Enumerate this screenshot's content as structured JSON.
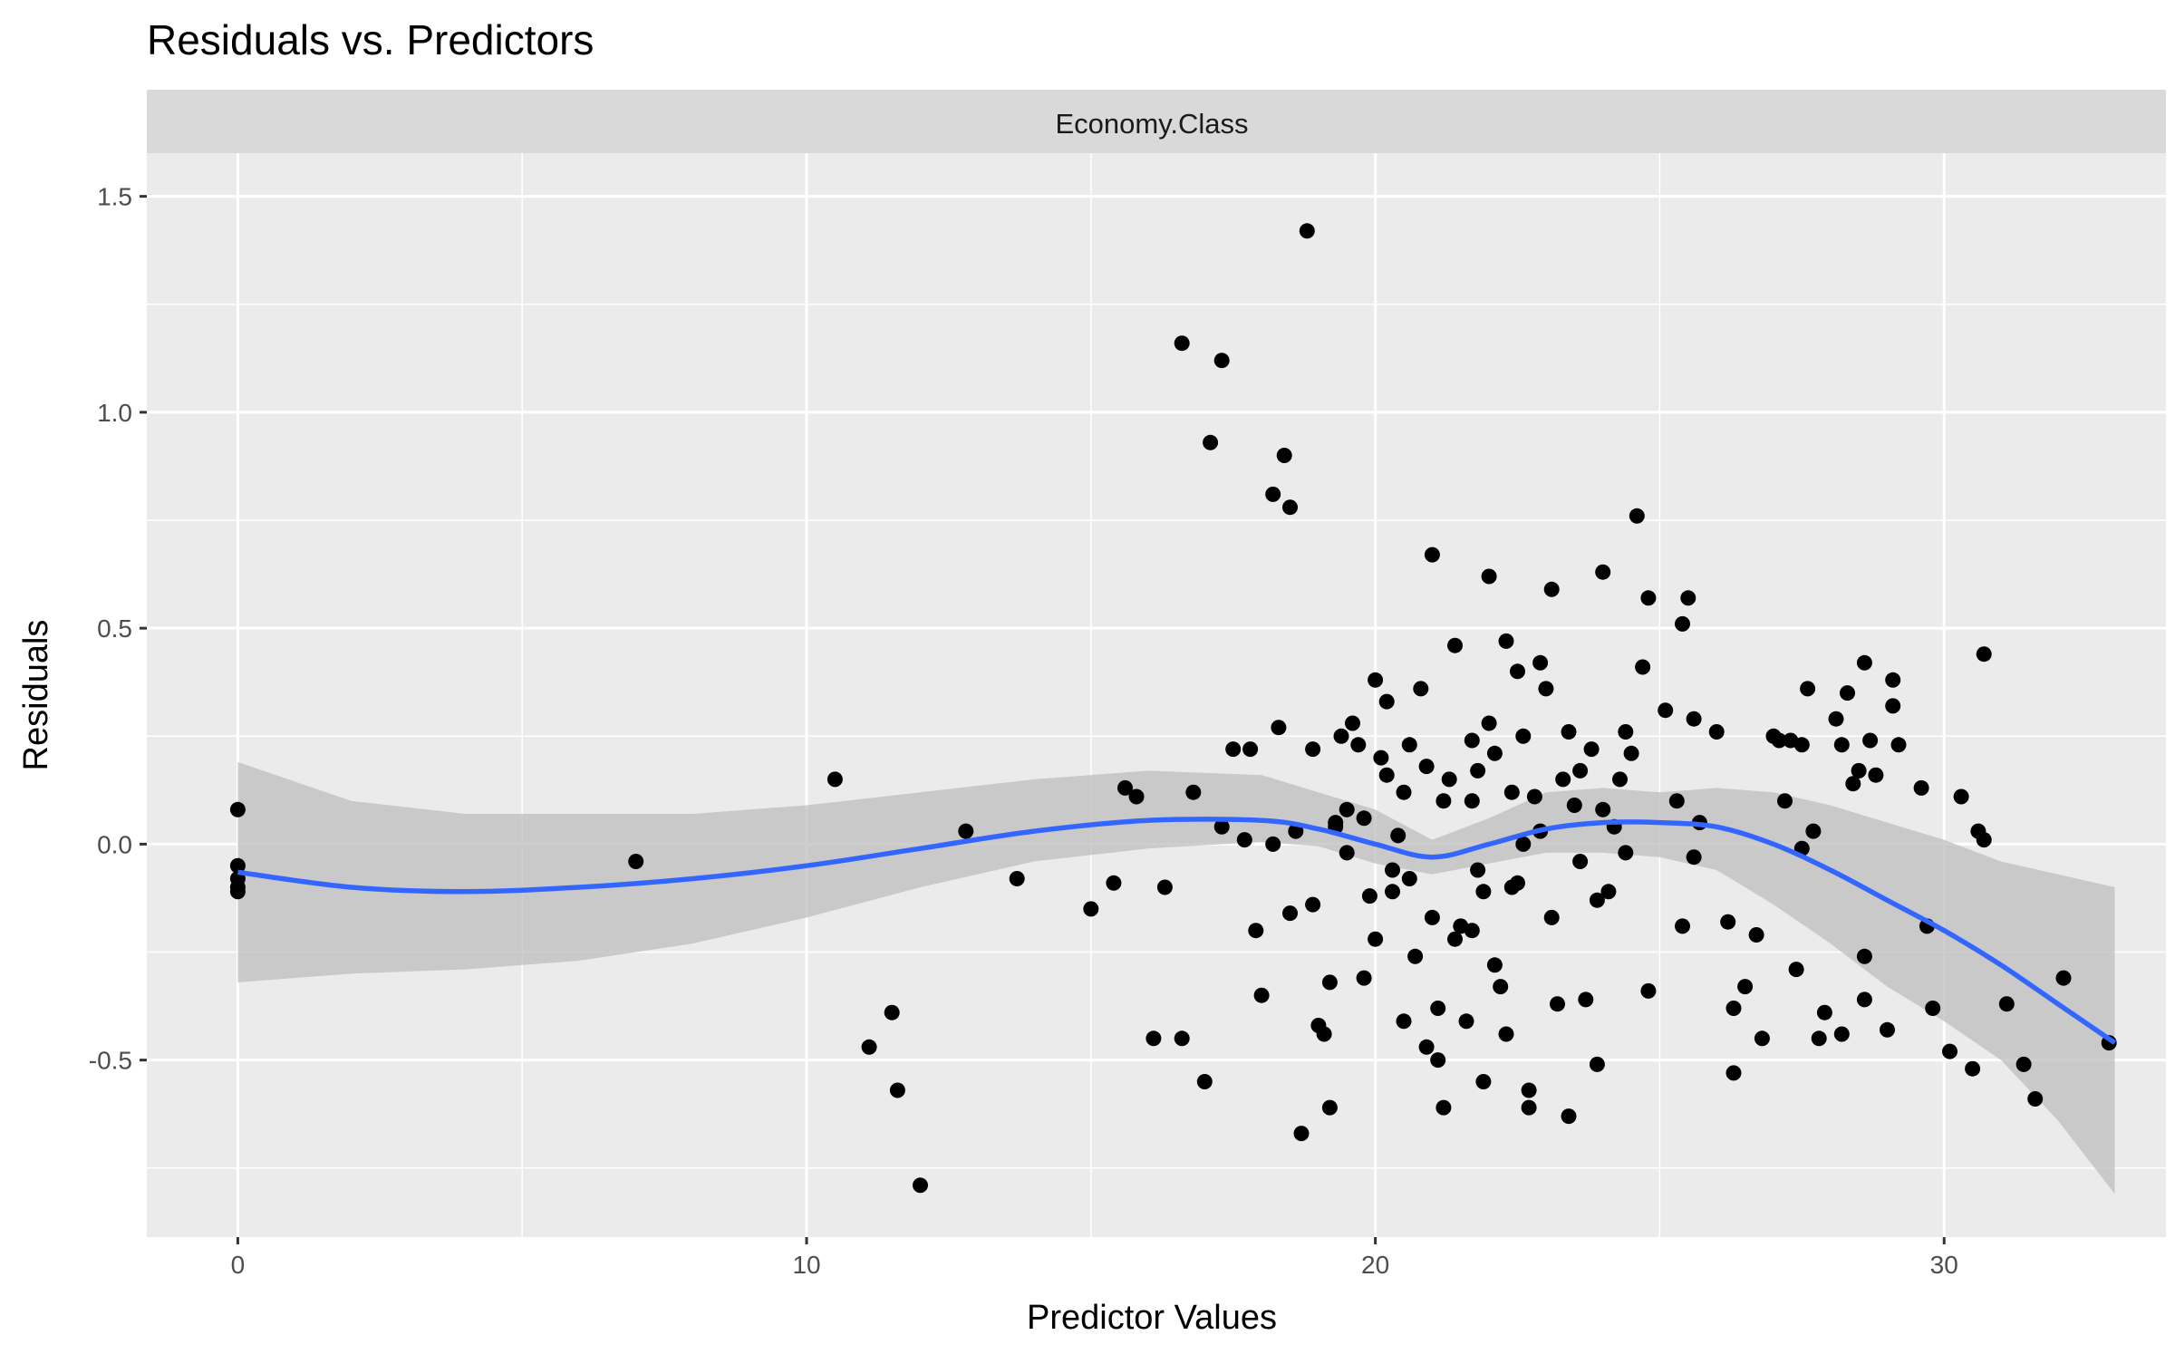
{
  "chart_data": {
    "type": "scatter",
    "title": "Residuals vs. Predictors",
    "facet_label": "Economy.Class",
    "xlabel": "Predictor Values",
    "ylabel": "Residuals",
    "xlim": [
      -1.6,
      33.9
    ],
    "ylim": [
      -0.91,
      1.6
    ],
    "x_ticks": [
      0,
      10,
      20,
      30
    ],
    "x_tick_labels": [
      "0",
      "10",
      "20",
      "30"
    ],
    "y_ticks": [
      -0.5,
      0.0,
      0.5,
      1.0,
      1.5
    ],
    "y_tick_labels": [
      "-0.5",
      "0.0",
      "0.5",
      "1.0",
      "1.5"
    ],
    "grid": true,
    "colors": {
      "points": "#000000",
      "smooth_line": "#3366FF",
      "confidence_band": "#BEBEBE",
      "panel_bg": "#EBEBEB",
      "strip_bg": "#D9D9D9",
      "grid": "#FFFFFF"
    },
    "series": [
      {
        "type": "scatter",
        "points": [
          [
            0.0,
            0.08
          ],
          [
            0.0,
            -0.05
          ],
          [
            0.0,
            -0.08
          ],
          [
            0.0,
            -0.1
          ],
          [
            0.0,
            -0.11
          ],
          [
            7.0,
            -0.04
          ],
          [
            10.5,
            0.15
          ],
          [
            11.1,
            -0.47
          ],
          [
            11.5,
            -0.39
          ],
          [
            11.6,
            -0.57
          ],
          [
            12.0,
            -0.79
          ],
          [
            12.8,
            0.03
          ],
          [
            13.7,
            -0.08
          ],
          [
            15.0,
            -0.15
          ],
          [
            15.4,
            -0.09
          ],
          [
            15.6,
            0.13
          ],
          [
            15.8,
            0.11
          ],
          [
            16.1,
            -0.45
          ],
          [
            16.3,
            -0.1
          ],
          [
            16.6,
            1.16
          ],
          [
            16.6,
            -0.45
          ],
          [
            16.8,
            0.12
          ],
          [
            17.1,
            0.93
          ],
          [
            17.0,
            -0.55
          ],
          [
            17.3,
            1.12
          ],
          [
            17.3,
            0.04
          ],
          [
            17.5,
            0.22
          ],
          [
            17.7,
            0.01
          ],
          [
            17.8,
            0.22
          ],
          [
            17.9,
            -0.2
          ],
          [
            18.0,
            -0.35
          ],
          [
            18.2,
            0.81
          ],
          [
            18.2,
            0.0
          ],
          [
            18.3,
            0.27
          ],
          [
            18.4,
            0.9
          ],
          [
            18.5,
            0.78
          ],
          [
            18.5,
            -0.16
          ],
          [
            18.6,
            0.03
          ],
          [
            18.7,
            -0.67
          ],
          [
            18.8,
            1.42
          ],
          [
            18.9,
            0.22
          ],
          [
            18.9,
            -0.14
          ],
          [
            19.0,
            -0.42
          ],
          [
            19.1,
            -0.44
          ],
          [
            19.2,
            -0.32
          ],
          [
            19.2,
            -0.61
          ],
          [
            19.3,
            0.05
          ],
          [
            19.4,
            0.25
          ],
          [
            19.5,
            0.08
          ],
          [
            19.5,
            -0.02
          ],
          [
            19.6,
            0.28
          ],
          [
            19.7,
            0.23
          ],
          [
            19.8,
            -0.31
          ],
          [
            19.8,
            0.06
          ],
          [
            19.9,
            -0.12
          ],
          [
            20.0,
            0.38
          ],
          [
            20.0,
            -0.22
          ],
          [
            20.1,
            0.2
          ],
          [
            20.2,
            0.33
          ],
          [
            20.2,
            0.16
          ],
          [
            20.3,
            -0.06
          ],
          [
            20.3,
            -0.11
          ],
          [
            20.4,
            0.02
          ],
          [
            20.5,
            0.12
          ],
          [
            20.6,
            0.23
          ],
          [
            20.6,
            -0.08
          ],
          [
            20.7,
            -0.26
          ],
          [
            20.8,
            0.36
          ],
          [
            20.9,
            0.18
          ],
          [
            21.0,
            0.67
          ],
          [
            21.0,
            -0.17
          ],
          [
            21.1,
            -0.38
          ],
          [
            21.1,
            -0.5
          ],
          [
            21.2,
            -0.61
          ],
          [
            21.3,
            0.15
          ],
          [
            21.4,
            0.46
          ],
          [
            21.4,
            -0.22
          ],
          [
            21.5,
            -0.19
          ],
          [
            21.6,
            -0.41
          ],
          [
            21.7,
            0.24
          ],
          [
            21.7,
            0.1
          ],
          [
            21.8,
            0.17
          ],
          [
            21.8,
            -0.06
          ],
          [
            21.9,
            -0.55
          ],
          [
            22.0,
            0.62
          ],
          [
            22.0,
            0.28
          ],
          [
            22.1,
            0.21
          ],
          [
            22.1,
            -0.28
          ],
          [
            22.2,
            -0.33
          ],
          [
            22.3,
            0.47
          ],
          [
            22.3,
            -0.44
          ],
          [
            22.4,
            0.12
          ],
          [
            22.5,
            0.4
          ],
          [
            22.5,
            -0.09
          ],
          [
            22.6,
            0.25
          ],
          [
            22.7,
            -0.57
          ],
          [
            22.7,
            -0.61
          ],
          [
            22.8,
            0.11
          ],
          [
            22.9,
            0.42
          ],
          [
            22.9,
            0.03
          ],
          [
            23.0,
            0.36
          ],
          [
            23.1,
            0.59
          ],
          [
            23.1,
            -0.17
          ],
          [
            23.2,
            -0.37
          ],
          [
            23.3,
            0.15
          ],
          [
            23.4,
            0.26
          ],
          [
            23.4,
            -0.63
          ],
          [
            23.5,
            0.09
          ],
          [
            23.6,
            0.17
          ],
          [
            23.7,
            -0.36
          ],
          [
            23.8,
            0.22
          ],
          [
            23.9,
            -0.51
          ],
          [
            24.0,
            0.63
          ],
          [
            24.0,
            0.08
          ],
          [
            24.1,
            -0.11
          ],
          [
            24.2,
            0.04
          ],
          [
            24.3,
            0.15
          ],
          [
            24.4,
            0.26
          ],
          [
            24.5,
            0.21
          ],
          [
            24.6,
            0.76
          ],
          [
            24.7,
            0.41
          ],
          [
            24.8,
            0.57
          ],
          [
            24.8,
            -0.34
          ],
          [
            25.1,
            0.31
          ],
          [
            25.4,
            0.51
          ],
          [
            25.4,
            -0.19
          ],
          [
            25.5,
            0.57
          ],
          [
            25.6,
            0.29
          ],
          [
            25.6,
            -0.03
          ],
          [
            25.7,
            0.05
          ],
          [
            26.0,
            0.26
          ],
          [
            26.2,
            -0.18
          ],
          [
            26.3,
            -0.38
          ],
          [
            26.3,
            -0.53
          ],
          [
            26.7,
            -0.21
          ],
          [
            26.8,
            -0.45
          ],
          [
            27.0,
            0.25
          ],
          [
            27.1,
            0.24
          ],
          [
            27.2,
            0.1
          ],
          [
            27.3,
            0.24
          ],
          [
            27.4,
            -0.29
          ],
          [
            27.5,
            -0.01
          ],
          [
            27.6,
            0.36
          ],
          [
            27.7,
            0.03
          ],
          [
            27.8,
            -0.45
          ],
          [
            27.9,
            -0.39
          ],
          [
            28.1,
            0.29
          ],
          [
            28.2,
            0.23
          ],
          [
            28.3,
            0.35
          ],
          [
            28.4,
            0.14
          ],
          [
            28.5,
            0.17
          ],
          [
            28.6,
            0.42
          ],
          [
            28.7,
            0.24
          ],
          [
            28.8,
            0.16
          ],
          [
            28.6,
            -0.36
          ],
          [
            28.6,
            -0.26
          ],
          [
            29.0,
            -0.43
          ],
          [
            29.1,
            0.38
          ],
          [
            29.1,
            0.32
          ],
          [
            29.2,
            0.23
          ],
          [
            29.6,
            0.13
          ],
          [
            29.7,
            -0.19
          ],
          [
            29.8,
            -0.38
          ],
          [
            30.1,
            -0.48
          ],
          [
            30.3,
            0.11
          ],
          [
            30.5,
            -0.52
          ],
          [
            30.7,
            0.44
          ],
          [
            30.6,
            0.03
          ],
          [
            30.7,
            0.01
          ],
          [
            31.1,
            -0.37
          ],
          [
            31.4,
            -0.51
          ],
          [
            31.6,
            -0.59
          ],
          [
            32.1,
            -0.31
          ],
          [
            32.9,
            -0.46
          ],
          [
            19.3,
            0.04
          ],
          [
            21.9,
            -0.11
          ],
          [
            23.6,
            -0.04
          ],
          [
            22.4,
            -0.1
          ],
          [
            20.9,
            -0.47
          ],
          [
            21.7,
            -0.2
          ],
          [
            24.4,
            -0.02
          ],
          [
            26.5,
            -0.33
          ],
          [
            27.5,
            0.23
          ],
          [
            28.2,
            -0.44
          ],
          [
            21.2,
            0.1
          ],
          [
            22.6,
            0.0
          ],
          [
            20.5,
            -0.41
          ],
          [
            23.9,
            -0.13
          ],
          [
            25.3,
            0.1
          ]
        ]
      },
      {
        "type": "smooth",
        "x": [
          0,
          2,
          4,
          6,
          8,
          10,
          12,
          14,
          16,
          18,
          19,
          20,
          21,
          22,
          23,
          24,
          25,
          26,
          27,
          28,
          29,
          30,
          31,
          32,
          33
        ],
        "y": [
          -0.065,
          -0.1,
          -0.11,
          -0.1,
          -0.08,
          -0.05,
          -0.01,
          0.03,
          0.055,
          0.055,
          0.035,
          0.0,
          -0.03,
          0.0,
          0.035,
          0.05,
          0.05,
          0.04,
          0.0,
          -0.06,
          -0.13,
          -0.2,
          -0.28,
          -0.37,
          -0.46
        ],
        "ci_lower": [
          -0.32,
          -0.3,
          -0.29,
          -0.27,
          -0.23,
          -0.17,
          -0.1,
          -0.04,
          -0.01,
          0.005,
          -0.005,
          -0.045,
          -0.07,
          -0.045,
          -0.02,
          -0.02,
          -0.03,
          -0.06,
          -0.14,
          -0.23,
          -0.33,
          -0.41,
          -0.5,
          -0.64,
          -0.81
        ],
        "ci_upper": [
          0.19,
          0.1,
          0.07,
          0.07,
          0.07,
          0.09,
          0.12,
          0.15,
          0.17,
          0.16,
          0.12,
          0.08,
          0.01,
          0.06,
          0.12,
          0.13,
          0.12,
          0.13,
          0.12,
          0.09,
          0.05,
          0.01,
          -0.04,
          -0.07,
          -0.1
        ]
      }
    ]
  }
}
